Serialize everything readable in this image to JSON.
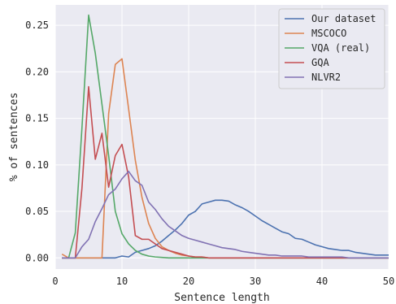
{
  "chart_data": {
    "type": "line",
    "xlabel": "Sentence length",
    "ylabel": "% of sentences",
    "xlim": [
      0,
      50
    ],
    "ylim": [
      -0.012,
      0.272
    ],
    "xticks": [
      0,
      10,
      20,
      30,
      40,
      50
    ],
    "xtick_labels": [
      "0",
      "10",
      "20",
      "30",
      "40",
      "50"
    ],
    "yticks": [
      0.0,
      0.05,
      0.1,
      0.15,
      0.2,
      0.25
    ],
    "ytick_labels": [
      "0.00",
      "0.05",
      "0.10",
      "0.15",
      "0.20",
      "0.25"
    ],
    "grid": true,
    "background": "#eaeaf2",
    "legend_position": "top-right",
    "series": [
      {
        "name": "Our dataset",
        "color": "#4c72b0",
        "x": [
          1,
          2,
          3,
          4,
          5,
          6,
          7,
          8,
          9,
          10,
          11,
          12,
          13,
          14,
          15,
          16,
          17,
          18,
          19,
          20,
          21,
          22,
          23,
          24,
          25,
          26,
          27,
          28,
          29,
          30,
          31,
          32,
          33,
          34,
          35,
          36,
          37,
          38,
          39,
          40,
          41,
          42,
          43,
          44,
          45,
          46,
          47,
          48,
          49,
          50
        ],
        "y": [
          0.0,
          0.0,
          0.0,
          0.0,
          0.0,
          0.0,
          0.0,
          0.0,
          0.0,
          0.002,
          0.001,
          0.006,
          0.008,
          0.01,
          0.013,
          0.018,
          0.024,
          0.03,
          0.037,
          0.046,
          0.05,
          0.058,
          0.06,
          0.062,
          0.062,
          0.061,
          0.057,
          0.054,
          0.05,
          0.045,
          0.04,
          0.036,
          0.032,
          0.028,
          0.026,
          0.021,
          0.02,
          0.017,
          0.014,
          0.012,
          0.01,
          0.009,
          0.008,
          0.008,
          0.006,
          0.005,
          0.004,
          0.003,
          0.003,
          0.003
        ]
      },
      {
        "name": "MSCOCO",
        "color": "#dd8452",
        "x": [
          1,
          2,
          3,
          4,
          5,
          6,
          7,
          8,
          9,
          10,
          11,
          12,
          13,
          14,
          15,
          16,
          17,
          18,
          19,
          20,
          21,
          22,
          23,
          24,
          25,
          26,
          27,
          28,
          29,
          30,
          31,
          32,
          33,
          34,
          35,
          36,
          37,
          38,
          39,
          40,
          41,
          42,
          43,
          44,
          45,
          46,
          47,
          48,
          49,
          50
        ],
        "y": [
          0.004,
          0.0,
          0.0,
          0.0,
          0.0,
          0.0,
          0.0,
          0.155,
          0.208,
          0.214,
          0.16,
          0.105,
          0.065,
          0.037,
          0.021,
          0.012,
          0.008,
          0.005,
          0.003,
          0.002,
          0.001,
          0.001,
          0.0,
          0.0,
          0.0,
          0.0,
          0.0,
          0.0,
          0.0,
          0.0,
          0.0,
          0.0,
          0.0,
          0.0,
          0.0,
          0.0,
          0.0,
          0.0,
          0.0,
          0.0,
          0.0,
          0.0,
          0.0,
          0.0,
          0.0,
          0.0,
          0.0,
          0.0,
          0.0,
          0.0
        ]
      },
      {
        "name": "VQA (real)",
        "color": "#55a868",
        "x": [
          1,
          2,
          3,
          4,
          5,
          6,
          7,
          8,
          9,
          10,
          11,
          12,
          13,
          14,
          15,
          16,
          17,
          18,
          19,
          20,
          21,
          22,
          23,
          24,
          25,
          26,
          27,
          28,
          29,
          30,
          31,
          32,
          33,
          34,
          35,
          36,
          37,
          38,
          39,
          40,
          41,
          42,
          43,
          44,
          45,
          46,
          47,
          48,
          49,
          50
        ],
        "y": [
          0.0,
          0.0,
          0.027,
          0.14,
          0.261,
          0.22,
          0.165,
          0.11,
          0.05,
          0.026,
          0.015,
          0.008,
          0.004,
          0.002,
          0.001,
          0.0005,
          0.0,
          0.0,
          0.0,
          0.0,
          0.0,
          0.0,
          0.0,
          0.0,
          0.0,
          0.0,
          0.0,
          0.0,
          0.0,
          0.0,
          0.0,
          0.0,
          0.0,
          0.0,
          0.0,
          0.0,
          0.0,
          0.0,
          0.0,
          0.0,
          0.0,
          0.0,
          0.0,
          0.0,
          0.0,
          0.0,
          0.0,
          0.0,
          0.0,
          0.0
        ]
      },
      {
        "name": "GQA",
        "color": "#c44e52",
        "x": [
          1,
          2,
          3,
          4,
          5,
          6,
          7,
          8,
          9,
          10,
          11,
          12,
          13,
          14,
          15,
          16,
          17,
          18,
          19,
          20,
          21,
          22,
          23,
          24,
          25,
          26,
          27,
          28,
          29,
          30,
          31,
          32,
          33,
          34,
          35,
          36,
          37,
          38,
          39,
          40,
          41,
          42,
          43,
          44,
          45,
          46,
          47,
          48,
          49,
          50
        ],
        "y": [
          0.0,
          0.0,
          0.0,
          0.075,
          0.184,
          0.106,
          0.134,
          0.076,
          0.11,
          0.122,
          0.087,
          0.024,
          0.02,
          0.02,
          0.015,
          0.01,
          0.008,
          0.006,
          0.004,
          0.002,
          0.001,
          0.001,
          0.0,
          0.0,
          0.0,
          0.0,
          0.0,
          0.0,
          0.0,
          0.0,
          0.0,
          0.0,
          0.0,
          0.0,
          0.0,
          0.0,
          0.0,
          0.0,
          0.0,
          0.0,
          0.0,
          0.0,
          0.0,
          0.0,
          0.0,
          0.0,
          0.0,
          0.0,
          0.0,
          0.0
        ]
      },
      {
        "name": "NLVR2",
        "color": "#8172b3",
        "x": [
          1,
          2,
          3,
          4,
          5,
          6,
          7,
          8,
          9,
          10,
          11,
          12,
          13,
          14,
          15,
          16,
          17,
          18,
          19,
          20,
          21,
          22,
          23,
          24,
          25,
          26,
          27,
          28,
          29,
          30,
          31,
          32,
          33,
          34,
          35,
          36,
          37,
          38,
          39,
          40,
          41,
          42,
          43,
          44,
          45,
          46,
          47,
          48,
          49,
          50
        ],
        "y": [
          0.0,
          0.0,
          0.0,
          0.012,
          0.02,
          0.039,
          0.053,
          0.068,
          0.074,
          0.085,
          0.093,
          0.083,
          0.078,
          0.06,
          0.052,
          0.042,
          0.034,
          0.029,
          0.024,
          0.021,
          0.019,
          0.017,
          0.015,
          0.013,
          0.011,
          0.01,
          0.009,
          0.007,
          0.006,
          0.005,
          0.004,
          0.003,
          0.003,
          0.002,
          0.002,
          0.002,
          0.002,
          0.001,
          0.001,
          0.001,
          0.001,
          0.001,
          0.001,
          0.0,
          0.0,
          0.0,
          0.0,
          0.0,
          0.0,
          0.0
        ]
      }
    ]
  }
}
